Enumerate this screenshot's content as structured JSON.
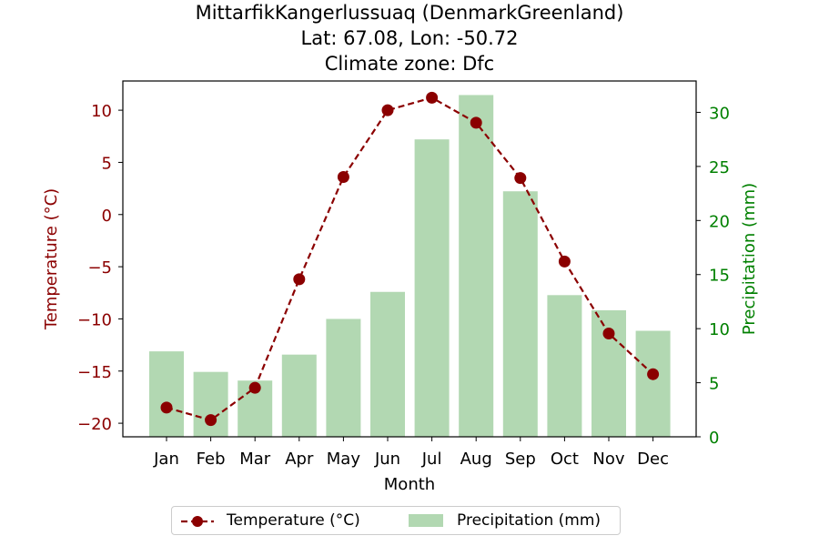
{
  "chart_data": {
    "type": "bar+line",
    "title": [
      "MittarfikKangerlussuaq (DenmarkGreenland)",
      "Lat: 67.08, Lon: -50.72",
      "Climate zone: Dfc"
    ],
    "xlabel": "Month",
    "ylabel_left": "Temperature (°C)",
    "ylabel_right": "Precipitation (mm)",
    "categories": [
      "Jan",
      "Feb",
      "Mar",
      "Apr",
      "May",
      "Jun",
      "Jul",
      "Aug",
      "Sep",
      "Oct",
      "Nov",
      "Dec"
    ],
    "temperature": {
      "name": "Temperature (°C)",
      "values": [
        -18.5,
        -19.7,
        -16.6,
        -6.2,
        3.6,
        10.0,
        11.2,
        8.8,
        3.5,
        -4.5,
        -11.4,
        -15.3
      ],
      "color": "#8b0000"
    },
    "precipitation": {
      "name": "Precipitation (mm)",
      "values": [
        7.9,
        6.0,
        5.2,
        7.6,
        10.9,
        13.4,
        27.5,
        31.6,
        22.7,
        13.1,
        11.7,
        9.8
      ],
      "color": "#b2d8b2"
    },
    "ylim_left": [
      -21.3,
      12.8
    ],
    "ylim_right": [
      0,
      32.9
    ],
    "yticks_left": [
      -20,
      -15,
      -10,
      -5,
      0,
      5,
      10
    ],
    "yticks_right": [
      0,
      5,
      10,
      15,
      20,
      25,
      30
    ],
    "left_axis_color": "#8b0000",
    "right_axis_color": "#008000",
    "legend_position": "bottom-center",
    "grid": false
  }
}
